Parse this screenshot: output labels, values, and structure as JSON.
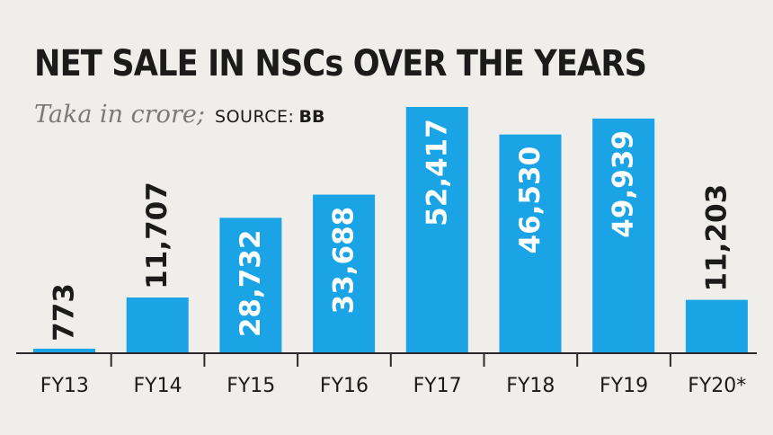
{
  "header": {
    "title": "NET SALE IN NSCs OVER THE YEARS",
    "unit": "Taka in crore;",
    "source_label": "SOURCE:",
    "source": "BB"
  },
  "colors": {
    "bar": "#1aa3e5",
    "background": "#efeeea",
    "axis": "#2a2a2a",
    "label_inside": "#ffffff",
    "label_outside": "#1b1b1b"
  },
  "chart_data": {
    "type": "bar",
    "title": "NET SALE IN NSCs OVER THE YEARS",
    "ylabel": "Taka in crore",
    "categories": [
      "FY13",
      "FY14",
      "FY15",
      "FY16",
      "FY17",
      "FY18",
      "FY19",
      "FY20*"
    ],
    "values": [
      773,
      11707,
      28732,
      33688,
      52417,
      46530,
      49939,
      11203
    ],
    "value_labels": [
      "773",
      "11,707",
      "28,732",
      "33,688",
      "52,417",
      "46,530",
      "49,939",
      "11,203"
    ],
    "ylim": [
      0,
      52417
    ],
    "grid": false,
    "legend": "none"
  }
}
